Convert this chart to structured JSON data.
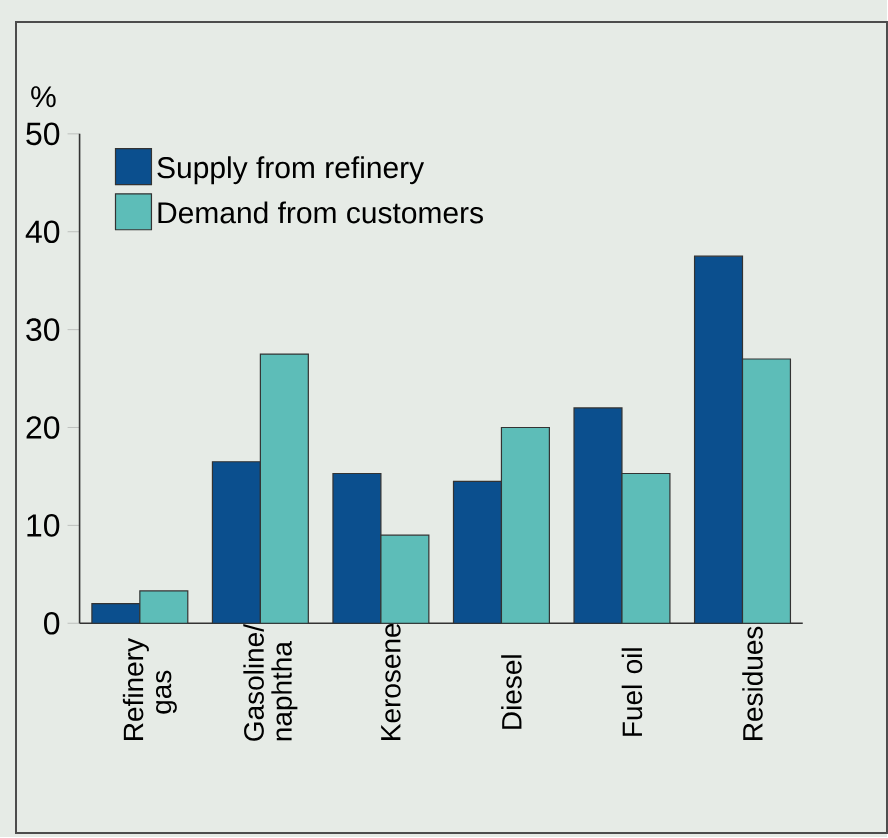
{
  "chart_data": {
    "type": "bar",
    "ylabel": "%",
    "categories": [
      "Refinery gas",
      "Gasoline/ naphtha",
      "Kerosene",
      "Diesel",
      "Fuel oil",
      "Residues"
    ],
    "series": [
      {
        "name": "Supply from refinery",
        "color": "#0b4f8e",
        "values": [
          2,
          16.5,
          15.3,
          14.5,
          22,
          37.5
        ]
      },
      {
        "name": "Demand from customers",
        "color": "#5dbdb8",
        "values": [
          3.3,
          27.5,
          9,
          20,
          15.3,
          27
        ]
      }
    ],
    "ylim": [
      0,
      50
    ],
    "yticks": [
      0,
      10,
      20,
      30,
      40,
      50
    ],
    "grid": false,
    "legend": "top left"
  }
}
